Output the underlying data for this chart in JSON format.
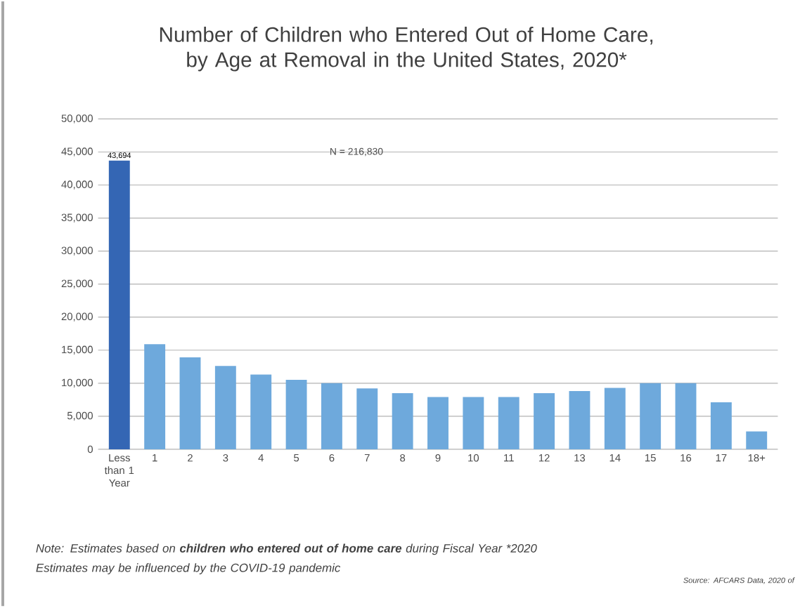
{
  "chart_data": {
    "type": "bar",
    "title": "Number of Children who Entered Out of Home Care, by Age at Removal in the United States, 2020*",
    "categories": [
      "Less than 1 Year",
      "1",
      "2",
      "3",
      "4",
      "5",
      "6",
      "7",
      "8",
      "9",
      "10",
      "11",
      "12",
      "13",
      "14",
      "15",
      "16",
      "17",
      "18+"
    ],
    "values": [
      43694,
      15900,
      13900,
      12600,
      11300,
      10500,
      10000,
      9200,
      8500,
      7900,
      7900,
      7900,
      8500,
      8800,
      9300,
      10000,
      10000,
      7100,
      2700
    ],
    "value_labels": [
      "43,694",
      null,
      null,
      null,
      null,
      null,
      null,
      null,
      null,
      null,
      null,
      null,
      null,
      null,
      null,
      null,
      null,
      null,
      null
    ],
    "colors": [
      "#3466b4",
      "#6ea9dc",
      "#6ea9dc",
      "#6ea9dc",
      "#6ea9dc",
      "#6ea9dc",
      "#6ea9dc",
      "#6ea9dc",
      "#6ea9dc",
      "#6ea9dc",
      "#6ea9dc",
      "#6ea9dc",
      "#6ea9dc",
      "#6ea9dc",
      "#6ea9dc",
      "#6ea9dc",
      "#6ea9dc",
      "#6ea9dc",
      "#6ea9dc"
    ],
    "ylim": [
      0,
      50000
    ],
    "yticks": [
      0,
      {
        "value": 5000,
        "label": "5,000"
      },
      {
        "value": 10000,
        "label": "10,000"
      },
      {
        "value": 15000,
        "label": "15,000"
      },
      {
        "value": 20000,
        "label": "20,000"
      },
      {
        "value": 25000,
        "label": "25,000"
      },
      {
        "value": 30000,
        "label": "30,000"
      },
      {
        "value": 35000,
        "label": "35,000"
      },
      {
        "value": 40000,
        "label": "40,000"
      },
      {
        "value": 45000,
        "label": "45,000"
      },
      {
        "value": 50000,
        "label": "50,000"
      }
    ],
    "grid": "y",
    "annotations": [
      "N = 216,830",
      "Note: Estimates based on **children who entered out of home care** during Fiscal Year *2020 Estimates may be influenced by the COVID-19 pandemic",
      "Source: AFCARS Data, 2020 of"
    ]
  }
}
